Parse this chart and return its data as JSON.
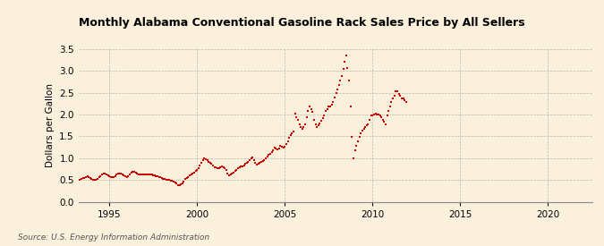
{
  "title": "Monthly Alabama Conventional Gasoline Rack Sales Price by All Sellers",
  "ylabel": "Dollars per Gallon",
  "source": "Source: U.S. Energy Information Administration",
  "background_color": "#FAF0DC",
  "plot_bg_color": "#FAF0DC",
  "dot_color": "#CC0000",
  "grid_color": "#AAAAAA",
  "ylim": [
    0.0,
    3.5
  ],
  "yticks": [
    0.0,
    0.5,
    1.0,
    1.5,
    2.0,
    2.5,
    3.0,
    3.5
  ],
  "xlim_start": 1993.25,
  "xlim_end": 2022.5,
  "xticks": [
    1995,
    2000,
    2005,
    2010,
    2015,
    2020
  ],
  "data": [
    [
      1993.33,
      0.5
    ],
    [
      1993.42,
      0.52
    ],
    [
      1993.5,
      0.54
    ],
    [
      1993.58,
      0.55
    ],
    [
      1993.67,
      0.57
    ],
    [
      1993.75,
      0.59
    ],
    [
      1993.83,
      0.57
    ],
    [
      1993.92,
      0.55
    ],
    [
      1994.0,
      0.53
    ],
    [
      1994.08,
      0.51
    ],
    [
      1994.17,
      0.5
    ],
    [
      1994.25,
      0.51
    ],
    [
      1994.33,
      0.53
    ],
    [
      1994.42,
      0.56
    ],
    [
      1994.5,
      0.59
    ],
    [
      1994.58,
      0.62
    ],
    [
      1994.67,
      0.64
    ],
    [
      1994.75,
      0.65
    ],
    [
      1994.83,
      0.63
    ],
    [
      1994.92,
      0.61
    ],
    [
      1995.0,
      0.59
    ],
    [
      1995.08,
      0.57
    ],
    [
      1995.17,
      0.56
    ],
    [
      1995.25,
      0.57
    ],
    [
      1995.33,
      0.59
    ],
    [
      1995.42,
      0.62
    ],
    [
      1995.5,
      0.64
    ],
    [
      1995.58,
      0.65
    ],
    [
      1995.67,
      0.64
    ],
    [
      1995.75,
      0.62
    ],
    [
      1995.83,
      0.6
    ],
    [
      1995.92,
      0.58
    ],
    [
      1996.0,
      0.57
    ],
    [
      1996.08,
      0.59
    ],
    [
      1996.17,
      0.62
    ],
    [
      1996.25,
      0.66
    ],
    [
      1996.33,
      0.68
    ],
    [
      1996.42,
      0.69
    ],
    [
      1996.5,
      0.67
    ],
    [
      1996.58,
      0.65
    ],
    [
      1996.67,
      0.63
    ],
    [
      1996.75,
      0.62
    ],
    [
      1996.83,
      0.62
    ],
    [
      1996.92,
      0.63
    ],
    [
      1997.0,
      0.63
    ],
    [
      1997.08,
      0.63
    ],
    [
      1997.17,
      0.63
    ],
    [
      1997.25,
      0.63
    ],
    [
      1997.33,
      0.62
    ],
    [
      1997.42,
      0.62
    ],
    [
      1997.5,
      0.61
    ],
    [
      1997.58,
      0.6
    ],
    [
      1997.67,
      0.59
    ],
    [
      1997.75,
      0.58
    ],
    [
      1997.83,
      0.57
    ],
    [
      1997.92,
      0.56
    ],
    [
      1998.0,
      0.55
    ],
    [
      1998.08,
      0.53
    ],
    [
      1998.17,
      0.52
    ],
    [
      1998.25,
      0.51
    ],
    [
      1998.33,
      0.51
    ],
    [
      1998.42,
      0.5
    ],
    [
      1998.5,
      0.49
    ],
    [
      1998.58,
      0.48
    ],
    [
      1998.67,
      0.46
    ],
    [
      1998.75,
      0.44
    ],
    [
      1998.83,
      0.42
    ],
    [
      1998.92,
      0.39
    ],
    [
      1999.0,
      0.38
    ],
    [
      1999.08,
      0.4
    ],
    [
      1999.17,
      0.43
    ],
    [
      1999.25,
      0.47
    ],
    [
      1999.33,
      0.52
    ],
    [
      1999.42,
      0.55
    ],
    [
      1999.5,
      0.57
    ],
    [
      1999.58,
      0.6
    ],
    [
      1999.67,
      0.62
    ],
    [
      1999.75,
      0.64
    ],
    [
      1999.83,
      0.67
    ],
    [
      1999.92,
      0.7
    ],
    [
      2000.0,
      0.73
    ],
    [
      2000.08,
      0.78
    ],
    [
      2000.17,
      0.84
    ],
    [
      2000.25,
      0.9
    ],
    [
      2000.33,
      0.96
    ],
    [
      2000.42,
      1.0
    ],
    [
      2000.5,
      0.98
    ],
    [
      2000.58,
      0.95
    ],
    [
      2000.67,
      0.92
    ],
    [
      2000.75,
      0.9
    ],
    [
      2000.83,
      0.87
    ],
    [
      2000.92,
      0.83
    ],
    [
      2001.0,
      0.8
    ],
    [
      2001.08,
      0.79
    ],
    [
      2001.17,
      0.78
    ],
    [
      2001.25,
      0.78
    ],
    [
      2001.33,
      0.8
    ],
    [
      2001.42,
      0.82
    ],
    [
      2001.5,
      0.8
    ],
    [
      2001.58,
      0.78
    ],
    [
      2001.67,
      0.72
    ],
    [
      2001.75,
      0.64
    ],
    [
      2001.83,
      0.6
    ],
    [
      2001.92,
      0.62
    ],
    [
      2002.0,
      0.65
    ],
    [
      2002.08,
      0.67
    ],
    [
      2002.17,
      0.7
    ],
    [
      2002.25,
      0.73
    ],
    [
      2002.33,
      0.76
    ],
    [
      2002.42,
      0.79
    ],
    [
      2002.5,
      0.81
    ],
    [
      2002.58,
      0.82
    ],
    [
      2002.67,
      0.84
    ],
    [
      2002.75,
      0.87
    ],
    [
      2002.83,
      0.9
    ],
    [
      2002.92,
      0.92
    ],
    [
      2003.0,
      0.96
    ],
    [
      2003.08,
      1.0
    ],
    [
      2003.17,
      1.02
    ],
    [
      2003.25,
      0.96
    ],
    [
      2003.33,
      0.9
    ],
    [
      2003.42,
      0.86
    ],
    [
      2003.5,
      0.87
    ],
    [
      2003.58,
      0.89
    ],
    [
      2003.67,
      0.91
    ],
    [
      2003.75,
      0.93
    ],
    [
      2003.83,
      0.96
    ],
    [
      2003.92,
      1.0
    ],
    [
      2004.0,
      1.04
    ],
    [
      2004.08,
      1.07
    ],
    [
      2004.17,
      1.1
    ],
    [
      2004.25,
      1.14
    ],
    [
      2004.33,
      1.19
    ],
    [
      2004.42,
      1.25
    ],
    [
      2004.5,
      1.22
    ],
    [
      2004.58,
      1.2
    ],
    [
      2004.67,
      1.23
    ],
    [
      2004.75,
      1.28
    ],
    [
      2004.83,
      1.27
    ],
    [
      2004.92,
      1.24
    ],
    [
      2005.0,
      1.27
    ],
    [
      2005.08,
      1.32
    ],
    [
      2005.17,
      1.38
    ],
    [
      2005.25,
      1.47
    ],
    [
      2005.33,
      1.52
    ],
    [
      2005.42,
      1.57
    ],
    [
      2005.5,
      1.62
    ],
    [
      2005.58,
      2.02
    ],
    [
      2005.67,
      1.93
    ],
    [
      2005.75,
      1.87
    ],
    [
      2005.83,
      1.78
    ],
    [
      2005.92,
      1.71
    ],
    [
      2006.0,
      1.68
    ],
    [
      2006.08,
      1.72
    ],
    [
      2006.17,
      1.78
    ],
    [
      2006.25,
      1.93
    ],
    [
      2006.33,
      2.08
    ],
    [
      2006.42,
      2.18
    ],
    [
      2006.5,
      2.12
    ],
    [
      2006.58,
      2.07
    ],
    [
      2006.67,
      1.88
    ],
    [
      2006.75,
      1.78
    ],
    [
      2006.83,
      1.72
    ],
    [
      2006.92,
      1.76
    ],
    [
      2007.0,
      1.8
    ],
    [
      2007.08,
      1.86
    ],
    [
      2007.17,
      1.92
    ],
    [
      2007.25,
      1.98
    ],
    [
      2007.33,
      2.08
    ],
    [
      2007.42,
      2.13
    ],
    [
      2007.5,
      2.18
    ],
    [
      2007.58,
      2.18
    ],
    [
      2007.67,
      2.23
    ],
    [
      2007.75,
      2.29
    ],
    [
      2007.83,
      2.39
    ],
    [
      2007.92,
      2.49
    ],
    [
      2008.0,
      2.58
    ],
    [
      2008.08,
      2.68
    ],
    [
      2008.17,
      2.79
    ],
    [
      2008.25,
      2.88
    ],
    [
      2008.33,
      3.05
    ],
    [
      2008.42,
      3.22
    ],
    [
      2008.5,
      3.35
    ],
    [
      2008.58,
      3.06
    ],
    [
      2008.67,
      2.78
    ],
    [
      2008.75,
      2.18
    ],
    [
      2008.83,
      1.48
    ],
    [
      2008.92,
      1.0
    ],
    [
      2009.0,
      1.18
    ],
    [
      2009.08,
      1.28
    ],
    [
      2009.17,
      1.38
    ],
    [
      2009.25,
      1.48
    ],
    [
      2009.33,
      1.58
    ],
    [
      2009.42,
      1.63
    ],
    [
      2009.5,
      1.68
    ],
    [
      2009.58,
      1.72
    ],
    [
      2009.67,
      1.75
    ],
    [
      2009.75,
      1.78
    ],
    [
      2009.83,
      1.88
    ],
    [
      2009.92,
      1.98
    ],
    [
      2010.0,
      1.98
    ],
    [
      2010.08,
      2.0
    ],
    [
      2010.17,
      2.02
    ],
    [
      2010.25,
      2.0
    ],
    [
      2010.33,
      2.0
    ],
    [
      2010.42,
      1.98
    ],
    [
      2010.5,
      1.93
    ],
    [
      2010.58,
      1.88
    ],
    [
      2010.67,
      1.83
    ],
    [
      2010.75,
      1.78
    ],
    [
      2010.83,
      1.98
    ],
    [
      2010.92,
      2.08
    ],
    [
      2011.0,
      2.18
    ],
    [
      2011.08,
      2.28
    ],
    [
      2011.17,
      2.38
    ],
    [
      2011.25,
      2.43
    ],
    [
      2011.33,
      2.53
    ],
    [
      2011.42,
      2.53
    ],
    [
      2011.5,
      2.48
    ],
    [
      2011.58,
      2.43
    ],
    [
      2011.67,
      2.38
    ],
    [
      2011.75,
      2.38
    ],
    [
      2011.83,
      2.33
    ],
    [
      2011.92,
      2.28
    ]
  ]
}
